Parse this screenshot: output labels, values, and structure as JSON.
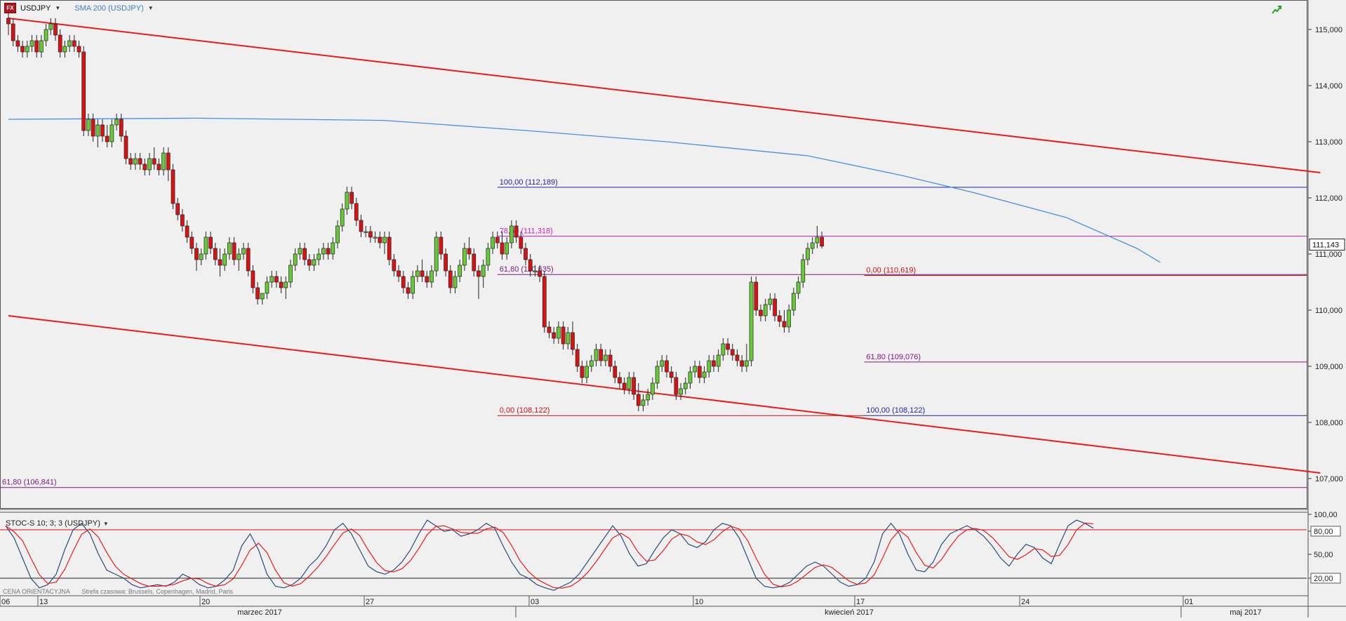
{
  "header": {
    "symbol": "USDJPY",
    "indicator": "SMA 200 (USDJPY)",
    "logo_text": "FX"
  },
  "stoch_label": "STOC-S 10; 3; 3 (USDJPY)",
  "footer_note": "CENA ORIENTACYJNA",
  "footer_tz": "Strefa czasowa: Brussels, Copenhagen, Madrid, Paris",
  "price_label": "111,143",
  "colors": {
    "up": "#66cc33",
    "down": "#dd1111",
    "sma": "#4a90d9",
    "channel": "#e81c1c",
    "k": "#2d4a7a",
    "d": "#e81c1c"
  },
  "chart_data": {
    "type": "candlestick",
    "y_ticks": [
      "107,000",
      "108,000",
      "109,000",
      "110,000",
      "111,000",
      "112,000",
      "113,000",
      "114,000",
      "115,000"
    ],
    "ylim": [
      106.6,
      115.5
    ],
    "x_day_labels": [
      "06",
      "13",
      "20",
      "27",
      "03",
      "10",
      "17",
      "24",
      "01"
    ],
    "x_month_labels": [
      "marzec 2017",
      "kwiecień 2017",
      "maj 2017"
    ],
    "candles_ohlc": [
      [
        115.2,
        115.3,
        114.9,
        115.1
      ],
      [
        115.1,
        115.2,
        114.7,
        114.8
      ],
      [
        114.8,
        114.9,
        114.6,
        114.7
      ],
      [
        114.7,
        114.8,
        114.5,
        114.6
      ],
      [
        114.6,
        114.8,
        114.5,
        114.7
      ],
      [
        114.7,
        114.9,
        114.6,
        114.8
      ],
      [
        114.8,
        114.9,
        114.5,
        114.6
      ],
      [
        114.6,
        114.9,
        114.5,
        114.8
      ],
      [
        114.8,
        115.1,
        114.7,
        115.0
      ],
      [
        115.0,
        115.2,
        114.9,
        115.1
      ],
      [
        115.1,
        115.2,
        114.8,
        114.9
      ],
      [
        114.9,
        115.0,
        114.5,
        114.6
      ],
      [
        114.6,
        114.8,
        114.5,
        114.7
      ],
      [
        114.7,
        114.9,
        114.6,
        114.8
      ],
      [
        114.8,
        114.9,
        114.6,
        114.7
      ],
      [
        114.7,
        114.8,
        114.5,
        114.6
      ],
      [
        114.6,
        114.7,
        113.1,
        113.2
      ],
      [
        113.2,
        113.5,
        113.1,
        113.4
      ],
      [
        113.4,
        113.5,
        113.0,
        113.1
      ],
      [
        113.1,
        113.4,
        112.9,
        113.3
      ],
      [
        113.3,
        113.4,
        113.0,
        113.1
      ],
      [
        113.1,
        113.3,
        112.9,
        113.0
      ],
      [
        113.0,
        113.4,
        112.9,
        113.3
      ],
      [
        113.3,
        113.5,
        113.2,
        113.4
      ],
      [
        113.4,
        113.5,
        113.0,
        113.1
      ],
      [
        113.1,
        113.2,
        112.6,
        112.7
      ],
      [
        112.7,
        112.8,
        112.5,
        112.6
      ],
      [
        112.6,
        112.8,
        112.5,
        112.7
      ],
      [
        112.7,
        112.8,
        112.5,
        112.6
      ],
      [
        112.6,
        112.7,
        112.4,
        112.5
      ],
      [
        112.5,
        112.8,
        112.4,
        112.7
      ],
      [
        112.7,
        112.9,
        112.5,
        112.6
      ],
      [
        112.6,
        112.7,
        112.4,
        112.5
      ],
      [
        112.5,
        112.9,
        112.4,
        112.8
      ],
      [
        112.8,
        112.9,
        112.3,
        112.5
      ],
      [
        112.5,
        112.6,
        111.8,
        111.9
      ],
      [
        111.9,
        112.0,
        111.6,
        111.7
      ],
      [
        111.7,
        111.8,
        111.4,
        111.5
      ],
      [
        111.5,
        111.6,
        111.2,
        111.3
      ],
      [
        111.3,
        111.4,
        111.0,
        111.1
      ],
      [
        111.1,
        111.2,
        110.7,
        110.9
      ],
      [
        110.9,
        111.1,
        110.8,
        111.0
      ],
      [
        111.0,
        111.4,
        110.9,
        111.3
      ],
      [
        111.3,
        111.4,
        111.0,
        111.1
      ],
      [
        111.1,
        111.2,
        110.8,
        110.9
      ],
      [
        110.9,
        111.1,
        110.6,
        110.8
      ],
      [
        110.8,
        111.1,
        110.7,
        111.0
      ],
      [
        111.0,
        111.3,
        110.9,
        111.2
      ],
      [
        111.2,
        111.3,
        110.8,
        110.9
      ],
      [
        110.9,
        111.1,
        110.7,
        111.0
      ],
      [
        111.0,
        111.2,
        110.9,
        111.1
      ],
      [
        111.1,
        111.2,
        110.6,
        110.7
      ],
      [
        110.7,
        110.8,
        110.3,
        110.4
      ],
      [
        110.4,
        110.5,
        110.1,
        110.2
      ],
      [
        110.2,
        110.3,
        110.1,
        110.3
      ],
      [
        110.3,
        110.6,
        110.2,
        110.5
      ],
      [
        110.5,
        110.7,
        110.4,
        110.6
      ],
      [
        110.6,
        110.7,
        110.4,
        110.5
      ],
      [
        110.5,
        110.6,
        110.3,
        110.4
      ],
      [
        110.4,
        110.6,
        110.2,
        110.5
      ],
      [
        110.5,
        110.9,
        110.4,
        110.8
      ],
      [
        110.8,
        111.1,
        110.7,
        111.0
      ],
      [
        111.0,
        111.2,
        110.9,
        111.1
      ],
      [
        111.1,
        111.2,
        110.8,
        110.9
      ],
      [
        110.9,
        111.0,
        110.7,
        110.8
      ],
      [
        110.8,
        111.0,
        110.7,
        110.9
      ],
      [
        110.9,
        111.1,
        110.8,
        111.0
      ],
      [
        111.0,
        111.2,
        110.9,
        111.1
      ],
      [
        111.1,
        111.2,
        110.9,
        111.0
      ],
      [
        111.0,
        111.3,
        110.9,
        111.2
      ],
      [
        111.2,
        111.6,
        111.1,
        111.5
      ],
      [
        111.5,
        111.9,
        111.4,
        111.8
      ],
      [
        111.8,
        112.2,
        111.7,
        112.1
      ],
      [
        112.1,
        112.2,
        111.8,
        111.9
      ],
      [
        111.9,
        112.0,
        111.5,
        111.6
      ],
      [
        111.6,
        111.7,
        111.3,
        111.4
      ],
      [
        111.4,
        111.5,
        111.3,
        111.4
      ],
      [
        111.4,
        111.5,
        111.2,
        111.3
      ],
      [
        111.3,
        111.4,
        111.2,
        111.3
      ],
      [
        111.3,
        111.4,
        111.1,
        111.2
      ],
      [
        111.2,
        111.4,
        111.0,
        111.3
      ],
      [
        111.3,
        111.4,
        110.8,
        110.9
      ],
      [
        110.9,
        111.0,
        110.6,
        110.7
      ],
      [
        110.7,
        110.8,
        110.5,
        110.6
      ],
      [
        110.6,
        110.7,
        110.3,
        110.4
      ],
      [
        110.4,
        110.5,
        110.2,
        110.3
      ],
      [
        110.3,
        110.7,
        110.2,
        110.6
      ],
      [
        110.6,
        110.8,
        110.5,
        110.7
      ],
      [
        110.7,
        110.9,
        110.5,
        110.6
      ],
      [
        110.6,
        110.7,
        110.4,
        110.5
      ],
      [
        110.5,
        110.8,
        110.4,
        110.7
      ],
      [
        110.7,
        111.4,
        110.6,
        111.3
      ],
      [
        111.3,
        111.4,
        110.9,
        111.0
      ],
      [
        111.0,
        111.1,
        110.6,
        110.7
      ],
      [
        110.7,
        110.8,
        110.3,
        110.4
      ],
      [
        110.4,
        110.7,
        110.3,
        110.6
      ],
      [
        110.6,
        110.9,
        110.5,
        110.8
      ],
      [
        110.8,
        111.2,
        110.7,
        111.1
      ],
      [
        111.1,
        111.3,
        110.9,
        111.0
      ],
      [
        111.0,
        111.1,
        110.6,
        110.7
      ],
      [
        110.7,
        110.8,
        110.2,
        110.6
      ],
      [
        110.6,
        110.9,
        110.4,
        110.8
      ],
      [
        110.8,
        111.2,
        110.7,
        111.1
      ],
      [
        111.1,
        111.4,
        111.0,
        111.3
      ],
      [
        111.3,
        111.4,
        111.1,
        111.2
      ],
      [
        111.2,
        111.4,
        110.9,
        111.0
      ],
      [
        111.0,
        111.3,
        110.9,
        111.2
      ],
      [
        111.2,
        111.6,
        111.1,
        111.5
      ],
      [
        111.5,
        111.6,
        111.2,
        111.3
      ],
      [
        111.3,
        111.4,
        111.0,
        111.1
      ],
      [
        111.1,
        111.2,
        110.8,
        110.9
      ],
      [
        110.9,
        111.0,
        110.6,
        110.7
      ],
      [
        110.7,
        110.8,
        110.6,
        110.7
      ],
      [
        110.7,
        110.8,
        110.5,
        110.6
      ],
      [
        110.6,
        110.7,
        109.6,
        109.7
      ],
      [
        109.7,
        109.8,
        109.5,
        109.6
      ],
      [
        109.6,
        109.7,
        109.4,
        109.5
      ],
      [
        109.5,
        109.8,
        109.4,
        109.7
      ],
      [
        109.7,
        109.8,
        109.3,
        109.4
      ],
      [
        109.4,
        109.7,
        109.3,
        109.6
      ],
      [
        109.6,
        109.8,
        109.2,
        109.3
      ],
      [
        109.3,
        109.4,
        108.9,
        109.0
      ],
      [
        109.0,
        109.1,
        108.7,
        108.8
      ],
      [
        108.8,
        109.1,
        108.7,
        109.0
      ],
      [
        109.0,
        109.2,
        108.9,
        109.1
      ],
      [
        109.1,
        109.4,
        109.0,
        109.3
      ],
      [
        109.3,
        109.4,
        109.0,
        109.1
      ],
      [
        109.1,
        109.3,
        109.0,
        109.2
      ],
      [
        109.2,
        109.3,
        108.9,
        109.0
      ],
      [
        109.0,
        109.1,
        108.7,
        108.8
      ],
      [
        108.8,
        108.9,
        108.6,
        108.7
      ],
      [
        108.7,
        108.8,
        108.5,
        108.6
      ],
      [
        108.6,
        108.9,
        108.5,
        108.8
      ],
      [
        108.8,
        108.9,
        108.4,
        108.5
      ],
      [
        108.5,
        108.7,
        108.2,
        108.3
      ],
      [
        108.3,
        108.5,
        108.2,
        108.4
      ],
      [
        108.4,
        108.6,
        108.3,
        108.5
      ],
      [
        108.5,
        108.8,
        108.4,
        108.7
      ],
      [
        108.7,
        109.1,
        108.6,
        109.0
      ],
      [
        109.0,
        109.2,
        108.9,
        109.1
      ],
      [
        109.1,
        109.2,
        108.8,
        108.9
      ],
      [
        108.9,
        109.0,
        108.7,
        108.8
      ],
      [
        108.8,
        108.9,
        108.4,
        108.5
      ],
      [
        108.5,
        108.7,
        108.4,
        108.6
      ],
      [
        108.6,
        108.8,
        108.5,
        108.7
      ],
      [
        108.7,
        109.0,
        108.6,
        108.9
      ],
      [
        108.9,
        109.1,
        108.8,
        109.0
      ],
      [
        109.0,
        109.1,
        108.7,
        108.8
      ],
      [
        108.8,
        109.0,
        108.7,
        108.9
      ],
      [
        108.9,
        109.2,
        108.8,
        109.1
      ],
      [
        109.1,
        109.2,
        108.9,
        109.0
      ],
      [
        109.0,
        109.3,
        108.9,
        109.2
      ],
      [
        109.2,
        109.5,
        109.1,
        109.4
      ],
      [
        109.4,
        109.5,
        109.2,
        109.3
      ],
      [
        109.3,
        109.4,
        109.1,
        109.2
      ],
      [
        109.2,
        109.3,
        109.0,
        109.1
      ],
      [
        109.1,
        109.2,
        108.9,
        109.0
      ],
      [
        109.0,
        109.4,
        108.9,
        109.1
      ],
      [
        109.1,
        110.6,
        109.0,
        110.5
      ],
      [
        110.5,
        110.6,
        109.9,
        110.0
      ],
      [
        110.0,
        110.1,
        109.8,
        109.9
      ],
      [
        109.9,
        110.2,
        109.8,
        110.1
      ],
      [
        110.1,
        110.3,
        110.0,
        110.2
      ],
      [
        110.2,
        110.3,
        109.8,
        109.9
      ],
      [
        109.9,
        110.0,
        109.7,
        109.8
      ],
      [
        109.8,
        110.0,
        109.6,
        109.7
      ],
      [
        109.7,
        110.1,
        109.6,
        110.0
      ],
      [
        110.0,
        110.4,
        109.9,
        110.3
      ],
      [
        110.3,
        110.6,
        110.2,
        110.5
      ],
      [
        110.5,
        111.0,
        110.4,
        110.9
      ],
      [
        110.9,
        111.2,
        110.8,
        111.1
      ],
      [
        111.1,
        111.3,
        111.0,
        111.2
      ],
      [
        111.2,
        111.5,
        111.1,
        111.3
      ],
      [
        111.3,
        111.4,
        111.1,
        111.14
      ]
    ],
    "sma200": [
      [
        0,
        113.4
      ],
      [
        40,
        113.42
      ],
      [
        80,
        113.38
      ],
      [
        110,
        113.2
      ],
      [
        140,
        113.0
      ],
      [
        170,
        112.75
      ],
      [
        190,
        112.4
      ],
      [
        205,
        112.1
      ],
      [
        225,
        111.65
      ],
      [
        240,
        111.1
      ],
      [
        245,
        110.85
      ]
    ],
    "channel_lines": [
      {
        "x0": 0,
        "y0": 115.2,
        "x1": 279,
        "y1": 112.45
      },
      {
        "x0": 0,
        "y0": 109.9,
        "x1": 279,
        "y1": 107.1
      }
    ],
    "fib_levels": [
      {
        "label": "100,00 (112,189)",
        "value": 112.189,
        "x_start": 104,
        "x_end": 279,
        "color": "#2222aa"
      },
      {
        "label": "78,60 (111,318)",
        "value": 111.318,
        "x_start": 104,
        "x_end": 279,
        "color": "#cc22cc"
      },
      {
        "label": "61,80 (110,635)",
        "value": 110.635,
        "x_start": 104,
        "x_end": 279,
        "color": "#7a1a7a"
      },
      {
        "label": "0,00 (108,122)",
        "value": 108.122,
        "x_start": 104,
        "x_end": 182,
        "color": "#cc1111"
      },
      {
        "label": "0,00 (110,619)",
        "value": 110.619,
        "x_start": 182,
        "x_end": 279,
        "color": "#cc1111"
      },
      {
        "label": "61,80 (109,076)",
        "value": 109.076,
        "x_start": 182,
        "x_end": 279,
        "color": "#7a1a7a"
      },
      {
        "label": "100,00 (108,122)",
        "value": 108.122,
        "x_start": 182,
        "x_end": 279,
        "color": "#2222aa"
      },
      {
        "label": "61,80 (106,841)",
        "value": 106.841,
        "x_start": 0,
        "x_end": 279,
        "color": "#7a1a7a"
      }
    ],
    "stoch_ticks": [
      "100,00",
      "80,00",
      "50,00",
      "20,00"
    ],
    "stoch_levels": [
      80,
      20
    ],
    "stoch_k": [
      85,
      70,
      45,
      20,
      8,
      12,
      25,
      55,
      80,
      88,
      75,
      50,
      30,
      25,
      20,
      12,
      8,
      10,
      12,
      10,
      15,
      25,
      20,
      12,
      8,
      10,
      18,
      30,
      60,
      75,
      55,
      25,
      10,
      8,
      12,
      20,
      35,
      45,
      60,
      80,
      88,
      75,
      55,
      35,
      28,
      25,
      30,
      40,
      55,
      75,
      92,
      85,
      78,
      80,
      72,
      75,
      80,
      88,
      82,
      60,
      40,
      25,
      20,
      12,
      8,
      5,
      10,
      15,
      25,
      40,
      55,
      70,
      85,
      72,
      50,
      35,
      38,
      55,
      70,
      80,
      75,
      62,
      58,
      65,
      80,
      88,
      85,
      70,
      45,
      20,
      10,
      8,
      10,
      15,
      25,
      35,
      40,
      35,
      25,
      15,
      10,
      12,
      20,
      40,
      75,
      88,
      75,
      50,
      30,
      28,
      40,
      62,
      75,
      80,
      85,
      80,
      72,
      60,
      45,
      35,
      50,
      62,
      58,
      45,
      38,
      62,
      85,
      92,
      88,
      82
    ]
  }
}
